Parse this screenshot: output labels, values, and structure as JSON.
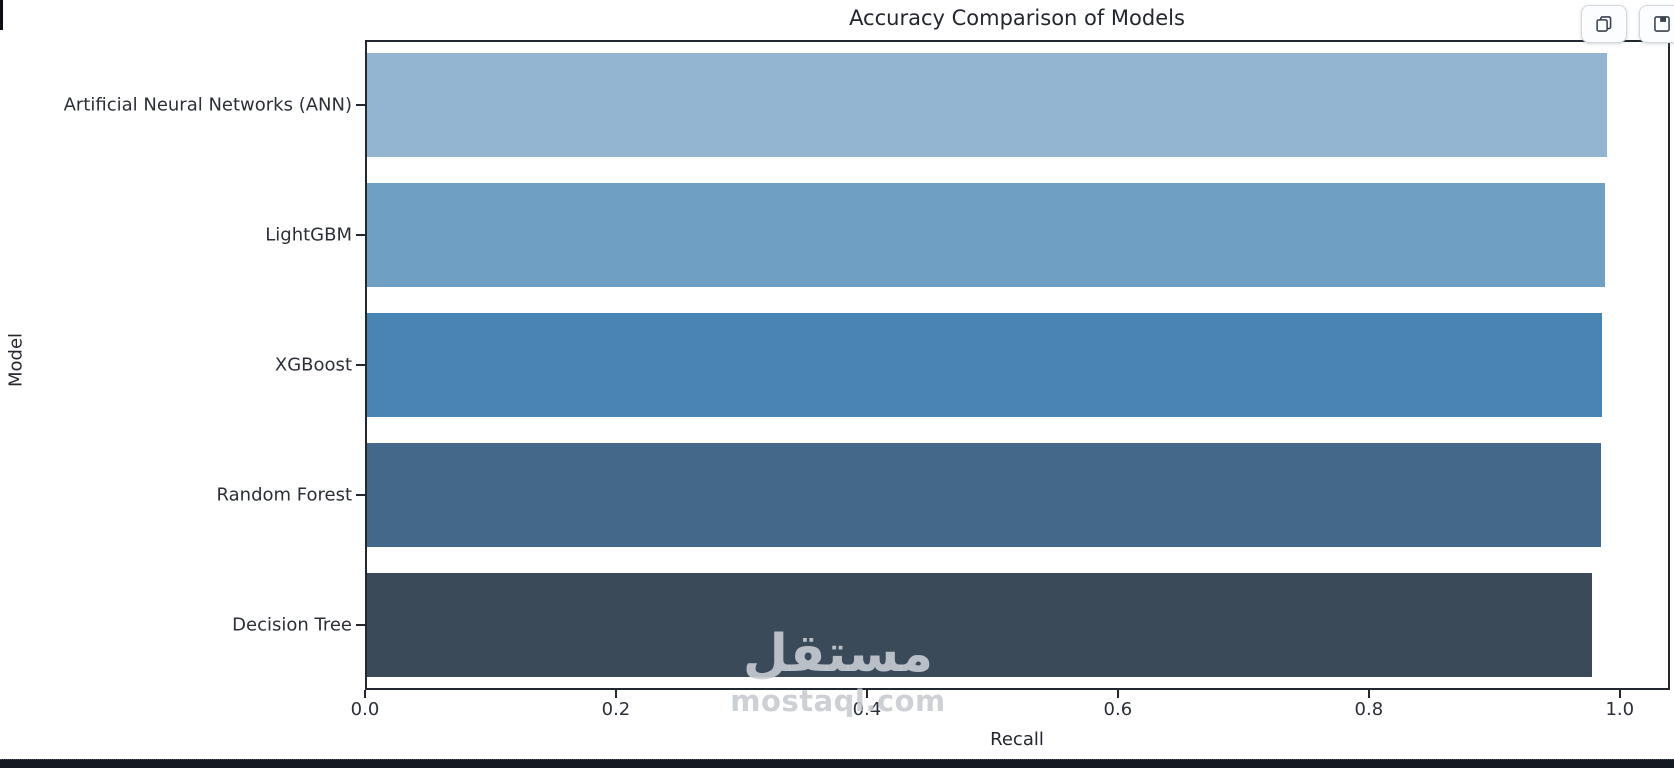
{
  "figure": {
    "title": "Accuracy Comparison of Models"
  },
  "chart_data": {
    "type": "bar",
    "orientation": "horizontal",
    "title": "Accuracy Comparison of Models",
    "categories": [
      "Artificial Neural Networks (ANN)",
      "LightGBM",
      "XGBoost",
      "Random Forest",
      "Decision Tree"
    ],
    "values": [
      0.99,
      0.988,
      0.986,
      0.985,
      0.978
    ],
    "xlabel": "Recall",
    "ylabel": "Model",
    "xlim": [
      0,
      1.04
    ],
    "xticks": [
      0.0,
      0.2,
      0.4,
      0.6,
      0.8,
      1.0
    ],
    "xtick_labels": [
      "0.0",
      "0.2",
      "0.4",
      "0.6",
      "0.8",
      "1.0"
    ],
    "bar_colors": [
      "#93b5d1",
      "#6fa0c4",
      "#4a84b5",
      "#44688a",
      "#3b4a59"
    ],
    "grid": false,
    "legend": false,
    "spine_color": "#23272e"
  },
  "toolbar": {
    "buttons": [
      {
        "icon": "copy-icon"
      },
      {
        "icon": "save-icon"
      }
    ]
  },
  "watermark": {
    "logo_text": "مستقل",
    "domain_text": "mostaql.com",
    "color": "#c8ccd2"
  }
}
